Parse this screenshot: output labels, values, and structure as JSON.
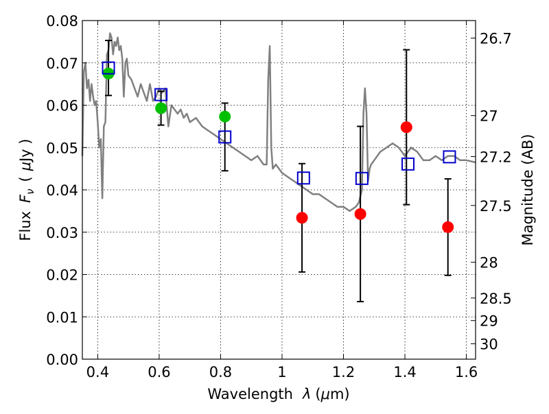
{
  "chart_data": {
    "type": "scatter",
    "xlabel_text": "Wavelength",
    "xlabel_symbol": "λ",
    "xlabel_unit_open": "(",
    "xlabel_unit_mu": "μ",
    "xlabel_unit_rest": "m)",
    "ylabel_text": "Flux",
    "ylabel_symbol_F": "F",
    "ylabel_symbol_sub": "ν",
    "ylabel_unit_open": "(",
    "ylabel_unit_mu": "μ",
    "ylabel_unit_rest": "Jy )",
    "y2label": "Magnitude (AB)",
    "xlim": [
      0.35,
      1.63
    ],
    "ylim": [
      0.0,
      0.08
    ],
    "grid": true,
    "xticks": [
      {
        "value": 0.4,
        "label": "0.4"
      },
      {
        "value": 0.6,
        "label": "0.6"
      },
      {
        "value": 0.8,
        "label": "0.8"
      },
      {
        "value": 1.0,
        "label": "1"
      },
      {
        "value": 1.2,
        "label": "1.2"
      },
      {
        "value": 1.4,
        "label": "1.4"
      },
      {
        "value": 1.6,
        "label": "1.6"
      }
    ],
    "yticks": [
      {
        "value": 0.0,
        "label": "0.00"
      },
      {
        "value": 0.01,
        "label": "0.01"
      },
      {
        "value": 0.02,
        "label": "0.02"
      },
      {
        "value": 0.03,
        "label": "0.03"
      },
      {
        "value": 0.04,
        "label": "0.04"
      },
      {
        "value": 0.05,
        "label": "0.05"
      },
      {
        "value": 0.06,
        "label": "0.06"
      },
      {
        "value": 0.07,
        "label": "0.07"
      },
      {
        "value": 0.08,
        "label": "0.08"
      }
    ],
    "y2ticks": [
      {
        "label": "26.7",
        "flux": 0.07586
      },
      {
        "label": "27",
        "flux": 0.05754
      },
      {
        "label": "27.2",
        "flux": 0.04786
      },
      {
        "label": "27.5",
        "flux": 0.03631
      },
      {
        "label": "28",
        "flux": 0.02291
      },
      {
        "label": "28.5",
        "flux": 0.01445
      },
      {
        "label": "29",
        "flux": 0.00912
      },
      {
        "label": "30",
        "flux": 0.00363
      }
    ],
    "series": [
      {
        "marker": "circle",
        "color": "#00c000",
        "points": [
          {
            "x": 0.435,
            "y": 0.0675,
            "err": 0.0
          },
          {
            "x": 0.606,
            "y": 0.0593,
            "err": 0.004
          },
          {
            "x": 0.814,
            "y": 0.0573,
            "err": 0.0
          }
        ]
      },
      {
        "marker": "circle",
        "color": "#ff0000",
        "points": [
          {
            "x": 1.065,
            "y": 0.0334,
            "err": 0.0128
          },
          {
            "x": 1.255,
            "y": 0.0343,
            "err": 0.0207
          },
          {
            "x": 1.405,
            "y": 0.0548,
            "err": 0.0183
          },
          {
            "x": 1.54,
            "y": 0.0312,
            "err": 0.0114
          }
        ]
      },
      {
        "marker": "square",
        "color": "#0000cc",
        "points": [
          {
            "x": 0.435,
            "y": 0.0688,
            "err": 0.0065
          },
          {
            "x": 0.606,
            "y": 0.0625,
            "err": 0.0
          },
          {
            "x": 0.814,
            "y": 0.0525,
            "err": 0.008
          },
          {
            "x": 1.07,
            "y": 0.0428,
            "err": 0.0
          },
          {
            "x": 1.26,
            "y": 0.0427,
            "err": 0.0
          },
          {
            "x": 1.41,
            "y": 0.0461,
            "err": 0.0
          },
          {
            "x": 1.545,
            "y": 0.0478,
            "err": 0.0
          }
        ]
      },
      {
        "marker": "line",
        "color": "#808080",
        "x": [
          0.35,
          0.355,
          0.36,
          0.365,
          0.37,
          0.375,
          0.38,
          0.385,
          0.39,
          0.395,
          0.4,
          0.405,
          0.41,
          0.415,
          0.42,
          0.425,
          0.43,
          0.435,
          0.44,
          0.445,
          0.45,
          0.455,
          0.46,
          0.465,
          0.47,
          0.475,
          0.48,
          0.485,
          0.49,
          0.495,
          0.5,
          0.51,
          0.52,
          0.53,
          0.54,
          0.55,
          0.56,
          0.57,
          0.58,
          0.59,
          0.6,
          0.61,
          0.62,
          0.63,
          0.64,
          0.65,
          0.66,
          0.67,
          0.68,
          0.69,
          0.7,
          0.72,
          0.74,
          0.76,
          0.78,
          0.8,
          0.82,
          0.84,
          0.86,
          0.88,
          0.9,
          0.92,
          0.94,
          0.95,
          0.955,
          0.96,
          0.965,
          0.97,
          0.98,
          1.0,
          1.02,
          1.04,
          1.06,
          1.08,
          1.1,
          1.12,
          1.14,
          1.16,
          1.18,
          1.2,
          1.22,
          1.24,
          1.25,
          1.26,
          1.265,
          1.27,
          1.275,
          1.28,
          1.285,
          1.29,
          1.3,
          1.32,
          1.34,
          1.36,
          1.38,
          1.4,
          1.42,
          1.44,
          1.46,
          1.48,
          1.5,
          1.52,
          1.54,
          1.56,
          1.58,
          1.6,
          1.63
        ],
        "y": [
          0.048,
          0.068,
          0.07,
          0.064,
          0.066,
          0.061,
          0.065,
          0.062,
          0.06,
          0.061,
          0.056,
          0.05,
          0.052,
          0.038,
          0.055,
          0.056,
          0.072,
          0.073,
          0.077,
          0.076,
          0.072,
          0.075,
          0.074,
          0.076,
          0.073,
          0.074,
          0.071,
          0.062,
          0.07,
          0.071,
          0.067,
          0.066,
          0.064,
          0.062,
          0.065,
          0.063,
          0.061,
          0.065,
          0.061,
          0.062,
          0.064,
          0.063,
          0.064,
          0.055,
          0.06,
          0.059,
          0.058,
          0.059,
          0.057,
          0.058,
          0.056,
          0.057,
          0.055,
          0.054,
          0.053,
          0.052,
          0.051,
          0.05,
          0.049,
          0.048,
          0.047,
          0.048,
          0.046,
          0.046,
          0.066,
          0.074,
          0.05,
          0.045,
          0.046,
          0.044,
          0.043,
          0.042,
          0.041,
          0.04,
          0.039,
          0.039,
          0.038,
          0.037,
          0.036,
          0.036,
          0.035,
          0.036,
          0.037,
          0.04,
          0.058,
          0.064,
          0.058,
          0.042,
          0.045,
          0.046,
          0.047,
          0.049,
          0.05,
          0.051,
          0.05,
          0.048,
          0.05,
          0.049,
          0.047,
          0.047,
          0.048,
          0.047,
          0.048,
          0.048,
          0.047,
          0.047,
          0.0465
        ]
      }
    ]
  }
}
